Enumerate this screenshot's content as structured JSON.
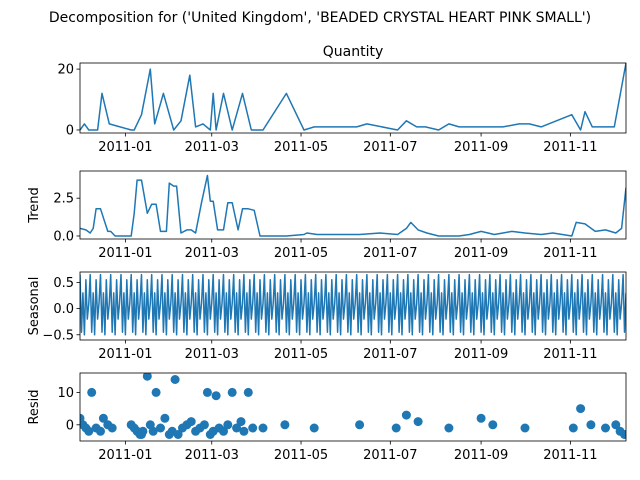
{
  "suptitle": "Decomposition for ('United Kingdom', 'BEADED CRYSTAL HEART PINK SMALL')",
  "colors": {
    "line": "#1f77b4",
    "axis": "#000000",
    "background": "#ffffff"
  },
  "chart_data": [
    {
      "type": "line",
      "panel": "observed",
      "title": "Quantity",
      "ylabel": "",
      "x_range": [
        "2010-12-01",
        "2011-12-09"
      ],
      "x_ticks": [
        "2011-01",
        "2011-03",
        "2011-05",
        "2011-07",
        "2011-09",
        "2011-11"
      ],
      "ylim": [
        -1,
        22
      ],
      "y_ticks": [
        "0",
        "20"
      ],
      "y_tick_values": [
        0,
        20
      ],
      "x": [
        "2010-12-01",
        "2010-12-04",
        "2010-12-07",
        "2010-12-13",
        "2010-12-16",
        "2010-12-21",
        "2011-01-05",
        "2011-01-07",
        "2011-01-12",
        "2011-01-18",
        "2011-01-21",
        "2011-01-27",
        "2011-02-03",
        "2011-02-08",
        "2011-02-14",
        "2011-02-18",
        "2011-02-23",
        "2011-02-28",
        "2011-03-02",
        "2011-03-04",
        "2011-03-09",
        "2011-03-15",
        "2011-03-22",
        "2011-03-28",
        "2011-04-05",
        "2011-04-21",
        "2011-05-03",
        "2011-05-10",
        "2011-05-26",
        "2011-06-08",
        "2011-06-15",
        "2011-07-06",
        "2011-07-12",
        "2011-07-19",
        "2011-07-25",
        "2011-08-03",
        "2011-08-10",
        "2011-08-17",
        "2011-08-30",
        "2011-09-06",
        "2011-09-09",
        "2011-09-16",
        "2011-09-27",
        "2011-10-04",
        "2011-10-12",
        "2011-11-02",
        "2011-11-08",
        "2011-11-11",
        "2011-11-16",
        "2011-11-23",
        "2011-12-01",
        "2011-12-09"
      ],
      "y": [
        0,
        2,
        0,
        0,
        12,
        2,
        0,
        0,
        5,
        20,
        2,
        12,
        0,
        3,
        18,
        1,
        2,
        0,
        12,
        0,
        12,
        0,
        12,
        0,
        0,
        12,
        0,
        1,
        1,
        1,
        2,
        0,
        3,
        1,
        1,
        0,
        2,
        1,
        1,
        1,
        1,
        1,
        2,
        2,
        1,
        5,
        0,
        6,
        1,
        1,
        1,
        22
      ]
    },
    {
      "type": "line",
      "panel": "trend",
      "title": "",
      "ylabel": "Trend",
      "x_range": [
        "2010-12-01",
        "2011-12-09"
      ],
      "x_ticks": [
        "2011-01",
        "2011-03",
        "2011-05",
        "2011-07",
        "2011-09",
        "2011-11"
      ],
      "ylim": [
        -0.2,
        4.3
      ],
      "y_ticks": [
        "0.0",
        "2.5"
      ],
      "y_tick_values": [
        0,
        2.5
      ],
      "x": [
        "2010-12-01",
        "2010-12-05",
        "2010-12-08",
        "2010-12-10",
        "2010-12-12",
        "2010-12-15",
        "2010-12-20",
        "2010-12-22",
        "2010-12-25",
        "2011-01-05",
        "2011-01-07",
        "2011-01-09",
        "2011-01-12",
        "2011-01-16",
        "2011-01-19",
        "2011-01-22",
        "2011-01-25",
        "2011-01-29",
        "2011-01-31",
        "2011-02-03",
        "2011-02-05",
        "2011-02-08",
        "2011-02-12",
        "2011-02-15",
        "2011-02-18",
        "2011-02-22",
        "2011-02-26",
        "2011-02-28",
        "2011-03-02",
        "2011-03-05",
        "2011-03-09",
        "2011-03-12",
        "2011-03-15",
        "2011-03-19",
        "2011-03-22",
        "2011-03-26",
        "2011-03-30",
        "2011-04-03",
        "2011-04-21",
        "2011-05-03",
        "2011-05-05",
        "2011-05-12",
        "2011-05-26",
        "2011-06-10",
        "2011-06-24",
        "2011-07-06",
        "2011-07-12",
        "2011-07-15",
        "2011-07-20",
        "2011-07-26",
        "2011-08-03",
        "2011-08-17",
        "2011-08-24",
        "2011-09-01",
        "2011-09-10",
        "2011-09-16",
        "2011-09-22",
        "2011-10-01",
        "2011-10-12",
        "2011-10-20",
        "2011-11-02",
        "2011-11-05",
        "2011-11-11",
        "2011-11-18",
        "2011-11-25",
        "2011-12-02",
        "2011-12-06",
        "2011-12-09"
      ],
      "y": [
        0.5,
        0.4,
        0.2,
        0.5,
        1.8,
        1.8,
        0.3,
        0.3,
        0.0,
        0.0,
        1.5,
        3.7,
        3.7,
        1.5,
        2.1,
        2.1,
        0.3,
        0.3,
        3.5,
        3.3,
        3.3,
        0.2,
        0.4,
        0.4,
        0.2,
        2.2,
        4.0,
        2.3,
        2.3,
        0.4,
        0.4,
        2.2,
        2.2,
        0.4,
        1.8,
        1.8,
        1.7,
        0.0,
        0.0,
        0.1,
        0.2,
        0.1,
        0.1,
        0.1,
        0.2,
        0.1,
        0.5,
        0.9,
        0.4,
        0.2,
        0.0,
        0.0,
        0.1,
        0.3,
        0.1,
        0.2,
        0.3,
        0.2,
        0.1,
        0.2,
        0.0,
        0.9,
        0.8,
        0.3,
        0.4,
        0.2,
        0.5,
        3.2
      ]
    },
    {
      "type": "line",
      "panel": "seasonal",
      "title": "",
      "ylabel": "Seasonal",
      "x_range": [
        "2010-12-01",
        "2011-12-09"
      ],
      "x_ticks": [
        "2011-01",
        "2011-03",
        "2011-05",
        "2011-07",
        "2011-09",
        "2011-11"
      ],
      "ylim": [
        -0.6,
        0.7
      ],
      "y_ticks": [
        "−0.5",
        "0.0",
        "0.5"
      ],
      "y_tick_values": [
        -0.5,
        0,
        0.5
      ],
      "period_days": 7,
      "pattern": [
        0.65,
        -0.45,
        0.3,
        -0.5,
        0.55,
        -0.2,
        0.1
      ]
    },
    {
      "type": "scatter",
      "panel": "resid",
      "title": "",
      "ylabel": "Resid",
      "x_range": [
        "2010-12-01",
        "2011-12-09"
      ],
      "x_ticks": [
        "2011-01",
        "2011-03",
        "2011-05",
        "2011-07",
        "2011-09",
        "2011-11"
      ],
      "ylim": [
        -5,
        16
      ],
      "y_ticks": [
        "0",
        "10"
      ],
      "y_tick_values": [
        0,
        10
      ],
      "x": [
        "2010-12-01",
        "2010-12-03",
        "2010-12-05",
        "2010-12-07",
        "2010-12-09",
        "2010-12-12",
        "2010-12-15",
        "2010-12-17",
        "2010-12-20",
        "2010-12-23",
        "2011-01-05",
        "2011-01-07",
        "2011-01-09",
        "2011-01-11",
        "2011-01-12",
        "2011-01-13",
        "2011-01-16",
        "2011-01-18",
        "2011-01-20",
        "2011-01-22",
        "2011-01-25",
        "2011-01-28",
        "2011-01-31",
        "2011-02-02",
        "2011-02-04",
        "2011-02-06",
        "2011-02-09",
        "2011-02-12",
        "2011-02-15",
        "2011-02-18",
        "2011-02-21",
        "2011-02-24",
        "2011-02-26",
        "2011-02-28",
        "2011-03-02",
        "2011-03-04",
        "2011-03-06",
        "2011-03-09",
        "2011-03-12",
        "2011-03-15",
        "2011-03-18",
        "2011-03-21",
        "2011-03-23",
        "2011-03-26",
        "2011-03-29",
        "2011-04-05",
        "2011-04-20",
        "2011-05-10",
        "2011-06-10",
        "2011-07-05",
        "2011-07-12",
        "2011-07-20",
        "2011-08-10",
        "2011-09-01",
        "2011-09-09",
        "2011-10-01",
        "2011-11-03",
        "2011-11-08",
        "2011-11-15",
        "2011-11-25",
        "2011-12-02",
        "2011-12-05",
        "2011-12-08"
      ],
      "y": [
        2,
        0,
        -1,
        -2,
        10,
        -1,
        -2,
        2,
        0,
        -1,
        0,
        -1,
        -2,
        -3,
        -3,
        -2,
        15,
        0,
        -2,
        10,
        -1,
        2,
        -3,
        -2,
        14,
        -3,
        -1,
        0,
        1,
        -2,
        -1,
        0,
        10,
        -3,
        -2,
        9,
        -1,
        -2,
        0,
        10,
        -1,
        1,
        -2,
        10,
        -1,
        -1,
        0,
        -1,
        0,
        -1,
        3,
        1,
        -1,
        2,
        0,
        -1,
        -1,
        5,
        0,
        -1,
        0,
        -2,
        -3
      ]
    }
  ]
}
